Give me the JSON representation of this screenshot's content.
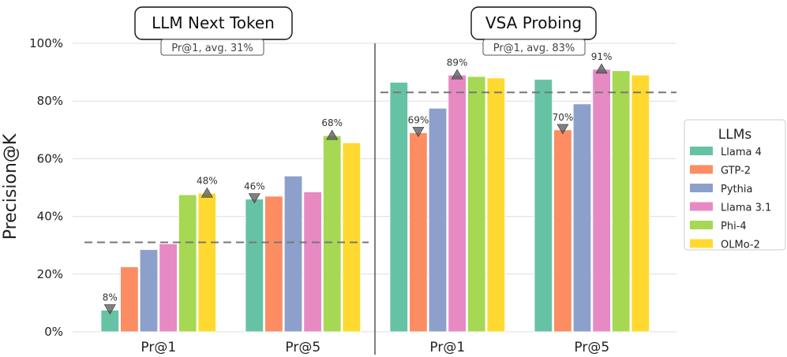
{
  "chart_data": {
    "type": "bar",
    "ylabel": "Precision@K",
    "ylim": [
      0,
      100
    ],
    "yticks": [
      "0%",
      "20%",
      "40%",
      "60%",
      "80%",
      "100%"
    ],
    "ytick_values": [
      0,
      20,
      40,
      60,
      80,
      100
    ],
    "legend": {
      "title": "LLMs",
      "placement": "right"
    },
    "series_names": [
      "Llama 4",
      "GTP-2",
      "Pythia",
      "Llama 3.1",
      "Phi-4",
      "OLMo-2"
    ],
    "colors": [
      "#66c2a5",
      "#fc8d62",
      "#8da0cb",
      "#e78ac3",
      "#a6d854",
      "#ffd92f"
    ],
    "panels": [
      {
        "title": "LLM Next Token",
        "subtitle": "Pr@1, avg. 31%",
        "avg": 31,
        "categories": [
          "Pr@1",
          "Pr@5"
        ],
        "values": [
          [
            7.5,
            22.5,
            28.5,
            30.5,
            47.5,
            48
          ],
          [
            46,
            47,
            54,
            48.5,
            68,
            65.5
          ]
        ],
        "annotations": [
          {
            "group": 0,
            "series": 0,
            "label": "8%",
            "marker": "down"
          },
          {
            "group": 0,
            "series": 5,
            "label": "48%",
            "marker": "up"
          },
          {
            "group": 1,
            "series": 0,
            "label": "46%",
            "marker": "down"
          },
          {
            "group": 1,
            "series": 4,
            "label": "68%",
            "marker": "up"
          }
        ]
      },
      {
        "title": "VSA Probing",
        "subtitle": "Pr@1, avg. 83%",
        "avg": 83,
        "categories": [
          "Pr@1",
          "Pr@5"
        ],
        "values": [
          [
            86.5,
            69,
            77.5,
            89,
            88.5,
            88
          ],
          [
            87.5,
            70,
            79,
            91,
            90.5,
            89
          ]
        ],
        "annotations": [
          {
            "group": 0,
            "series": 1,
            "label": "69%",
            "marker": "down"
          },
          {
            "group": 0,
            "series": 3,
            "label": "89%",
            "marker": "up"
          },
          {
            "group": 1,
            "series": 1,
            "label": "70%",
            "marker": "down"
          },
          {
            "group": 1,
            "series": 3,
            "label": "91%",
            "marker": "up"
          }
        ]
      }
    ]
  }
}
